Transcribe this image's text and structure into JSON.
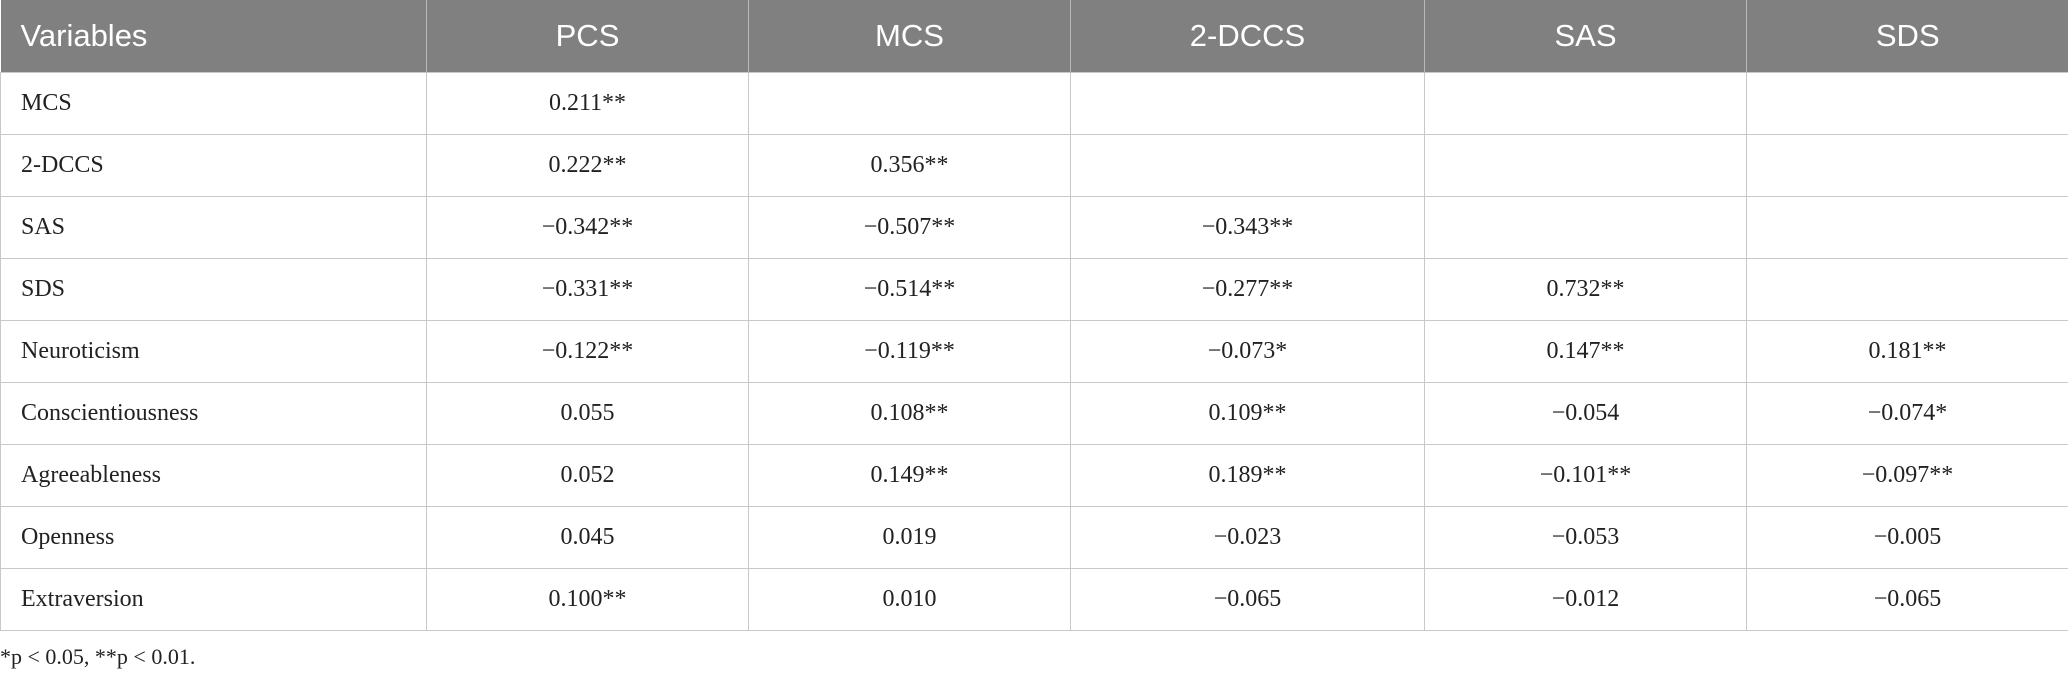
{
  "table": {
    "header": [
      "Variables",
      "PCS",
      "MCS",
      "2-DCCS",
      "SAS",
      "SDS"
    ],
    "rows": [
      [
        "MCS",
        "0.211**",
        null,
        null,
        null,
        null
      ],
      [
        "2-DCCS",
        "0.222**",
        "0.356**",
        null,
        null,
        null
      ],
      [
        "SAS",
        "−0.342**",
        "−0.507**",
        "−0.343**",
        null,
        null
      ],
      [
        "SDS",
        "−0.331**",
        "−0.514**",
        "−0.277**",
        "0.732**",
        null
      ],
      [
        "Neuroticism",
        "−0.122**",
        "−0.119**",
        "−0.073*",
        "0.147**",
        "0.181**"
      ],
      [
        "Conscientiousness",
        "0.055",
        "0.108**",
        "0.109**",
        "−0.054",
        "−0.074*"
      ],
      [
        "Agreeableness",
        "0.052",
        "0.149**",
        "0.189**",
        "−0.101**",
        "−0.097**"
      ],
      [
        "Openness",
        "0.045",
        "0.019",
        "−0.023",
        "−0.053",
        "−0.005"
      ],
      [
        "Extraversion",
        "0.100**",
        "0.010",
        "−0.065",
        "−0.012",
        "−0.065"
      ]
    ]
  },
  "footnote": "*p < 0.05, **p < 0.01."
}
